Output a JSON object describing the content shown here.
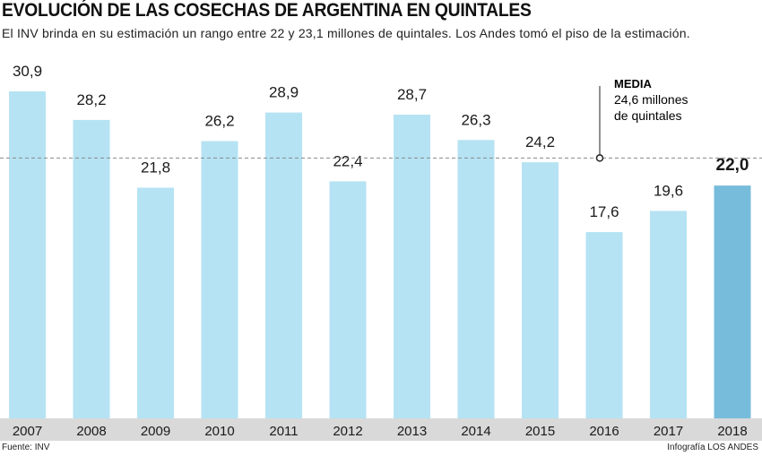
{
  "chart_data": {
    "type": "bar",
    "title": "EVOLUCIÓN DE LAS COSECHAS DE ARGENTINA EN QUINTALES",
    "subtitle": "El INV brinda en su estimación un rango entre 22 y 23,1 millones de quintales. Los Andes tomó el piso de la estimación.",
    "categories": [
      "2007",
      "2008",
      "2009",
      "2010",
      "2011",
      "2012",
      "2013",
      "2014",
      "2015",
      "2016",
      "2017",
      "2018"
    ],
    "values": [
      30.9,
      28.2,
      21.8,
      26.2,
      28.9,
      22.4,
      28.7,
      26.3,
      24.2,
      17.6,
      19.6,
      22.0
    ],
    "value_labels": [
      "30,9",
      "28,2",
      "21,8",
      "26,2",
      "28,9",
      "22,4",
      "28,7",
      "26,3",
      "24,2",
      "17,6",
      "19,6",
      "22,0"
    ],
    "highlight_category": "2018",
    "ylim": [
      0,
      30.9
    ],
    "xlabel": "",
    "ylabel": "",
    "mean": {
      "value": 24.6,
      "label_title": "MEDIA",
      "label_line1": "24,6 millones",
      "label_line2": "de quintales"
    },
    "colors": {
      "bar": "#b5e3f3",
      "highlight_bar": "#78bcdc",
      "category_band": "#d9d9d9",
      "text": "#1a1a1a"
    }
  },
  "footer": {
    "source": "Fuente: INV",
    "credit": "Infografía LOS ANDES"
  }
}
